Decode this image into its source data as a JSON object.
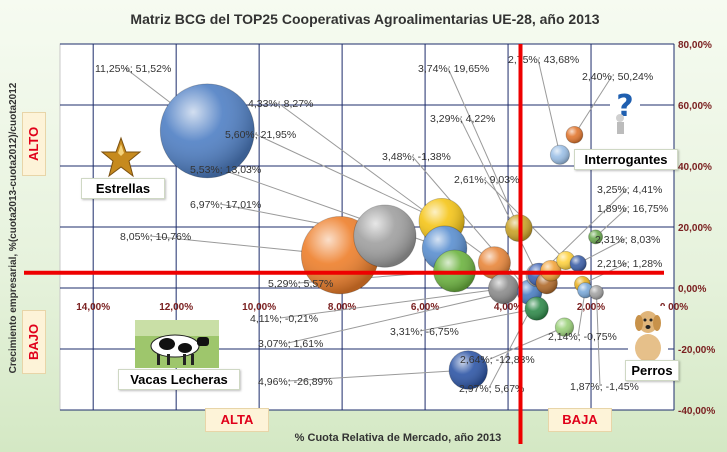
{
  "chart_data": {
    "type": "scatter",
    "title": "Matriz BCG del TOP25 Cooperativas Agroalimentarias UE-28, año 2013",
    "xlabel": "% Cuota Relativa de Mercado, año 2013",
    "ylabel": "Crecimiento empresarial, %(cuota2013-cuota2012)/cuota2012",
    "x_ticks": [
      "14,00%",
      "12,00%",
      "10,00%",
      "8,00%",
      "6,00%",
      "4,00%",
      "2,00%",
      "0,00%"
    ],
    "y_ticks": [
      "80,00%",
      "60,00%",
      "40,00%",
      "20,00%",
      "0,00%",
      "-20,00%",
      "-40,00%"
    ],
    "xlim": [
      14.8,
      0
    ],
    "ylim": [
      -40,
      80
    ],
    "x_reversed": true,
    "grid": true,
    "divider_x": 3.7,
    "divider_y": 5,
    "points": [
      {
        "x": 11.25,
        "y": 51.52,
        "label": "11,25%; 51,52%",
        "color": "#4f7fc4"
      },
      {
        "x": 8.05,
        "y": 10.76,
        "label": "8,05%; 10,76%",
        "color": "#ee7f2b"
      },
      {
        "x": 6.97,
        "y": 17.01,
        "label": "6,97%; 17,01%",
        "color": "#a0a0a0"
      },
      {
        "x": 5.53,
        "y": 13.03,
        "label": "5,53%; 13,03%",
        "color": "#5a8fd0"
      },
      {
        "x": 5.6,
        "y": 21.95,
        "label": "5,60%; 21,95%",
        "color": "#f5c518"
      },
      {
        "x": 5.29,
        "y": 5.57,
        "label": "5,29%; 5,57%",
        "color": "#6cb33f"
      },
      {
        "x": 4.33,
        "y": 8.27,
        "label": "4,33%; 8,27%",
        "color": "#e8863a"
      },
      {
        "x": 4.11,
        "y": -0.21,
        "label": "4,11%; -0,21%",
        "color": "#8c8c8c"
      },
      {
        "x": 4.96,
        "y": -26.89,
        "label": "4,96%; -26,89%",
        "color": "#2e56a6"
      },
      {
        "x": 3.74,
        "y": 19.65,
        "label": "3,74%; 19,65%",
        "color": "#c9a227"
      },
      {
        "x": 3.48,
        "y": -1.38,
        "label": "3,48%; -1,38%",
        "color": "#4a7ec2"
      },
      {
        "x": 3.29,
        "y": 4.22,
        "label": "3,29%; 4,22%",
        "color": "#aaaaaa"
      },
      {
        "x": 3.31,
        "y": -6.75,
        "label": "3,31%; -6,75%",
        "color": "#2f8a4a"
      },
      {
        "x": 3.07,
        "y": 1.61,
        "label": "3,07%; 1,61%",
        "color": "#b06a2a"
      },
      {
        "x": 2.75,
        "y": 43.68,
        "label": "2,75%; 43,68%",
        "color": "#9bbfe6"
      },
      {
        "x": 2.4,
        "y": 50.24,
        "label": "2,40%; 50,24%",
        "color": "#e2772f"
      },
      {
        "x": 2.61,
        "y": 9.03,
        "label": "2,61%; 9,03%",
        "color": "#ffd23f"
      },
      {
        "x": 2.64,
        "y": -12.83,
        "label": "2,64%; -12,83%",
        "color": "#9bd17a"
      },
      {
        "x": 2.97,
        "y": 5.67,
        "label": "2,97%; 5,67%",
        "color": "#f3a43a"
      },
      {
        "x": 3.25,
        "y": 4.41,
        "label": "3,25%; 4,41%",
        "color": "#3d63b5"
      },
      {
        "x": 1.89,
        "y": 16.75,
        "label": "1,89%; 16,75%",
        "color": "#6aa84f"
      },
      {
        "x": 2.31,
        "y": 8.03,
        "label": "2,31%; 8,03%",
        "color": "#3c5fa8"
      },
      {
        "x": 2.21,
        "y": 1.28,
        "label": "2,21%; 1,28%",
        "color": "#e8b020"
      },
      {
        "x": 2.14,
        "y": -0.75,
        "label": "2,14%; -0,75%",
        "color": "#7aa9d9"
      },
      {
        "x": 1.87,
        "y": -1.45,
        "label": "1,87%; -1,45%",
        "color": "#a3a3a3"
      }
    ]
  },
  "quadrants": {
    "estrellas": "Estrellas",
    "interrogantes": "Interrogantes",
    "vacas": "Vacas Lecheras",
    "perros": "Perros"
  },
  "side_labels": {
    "alto": "ALTO",
    "bajo": "BAJO",
    "alta": "ALTA",
    "baja": "BAJA"
  },
  "icons": [
    "star-icon",
    "question-person-icon",
    "cow-icon",
    "dog-icon"
  ]
}
